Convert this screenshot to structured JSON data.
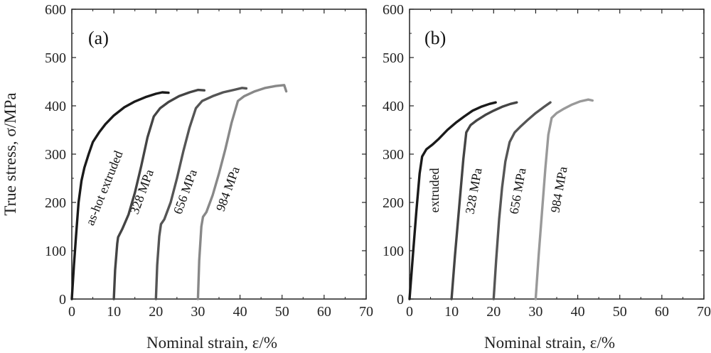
{
  "ylabel": "True stress, σ/MPa",
  "chart_data": [
    {
      "type": "line",
      "panel_label": "(a)",
      "xlabel": "Nominal strain, ε/%",
      "ylabel": "True stress, σ/MPa",
      "xlim": [
        0,
        70
      ],
      "ylim": [
        0,
        600
      ],
      "x_ticks": [
        "0",
        "10",
        "20",
        "30",
        "40",
        "50",
        "60",
        "70"
      ],
      "y_ticks": [
        "0",
        "100",
        "200",
        "300",
        "400",
        "500",
        "600"
      ],
      "grid": false,
      "series": [
        {
          "name": "as-hot extruded",
          "color": "#1a1a1a",
          "points": [
            [
              0,
              0
            ],
            [
              0.5,
              70
            ],
            [
              1,
              130
            ],
            [
              1.6,
              200
            ],
            [
              2.3,
              245
            ],
            [
              3,
              272
            ],
            [
              4,
              300
            ],
            [
              5,
              325
            ],
            [
              6.5,
              345
            ],
            [
              8,
              362
            ],
            [
              10,
              380
            ],
            [
              12.5,
              397
            ],
            [
              15,
              409
            ],
            [
              17.5,
              418
            ],
            [
              20,
              425
            ],
            [
              21.5,
              428
            ],
            [
              23,
              427
            ]
          ]
        },
        {
          "name": "328 MPa",
          "color": "#444444",
          "points": [
            [
              10,
              0
            ],
            [
              10.3,
              60
            ],
            [
              10.8,
              115
            ],
            [
              11,
              128
            ],
            [
              12,
              145
            ],
            [
              13.5,
              175
            ],
            [
              15,
              220
            ],
            [
              16.5,
              275
            ],
            [
              18,
              335
            ],
            [
              19.5,
              378
            ],
            [
              21,
              395
            ],
            [
              23,
              408
            ],
            [
              25.5,
              420
            ],
            [
              28,
              428
            ],
            [
              30,
              433
            ],
            [
              31.5,
              432
            ]
          ]
        },
        {
          "name": "656 MPa",
          "color": "#555555",
          "points": [
            [
              20,
              0
            ],
            [
              20.3,
              70
            ],
            [
              20.8,
              130
            ],
            [
              21.2,
              155
            ],
            [
              22,
              165
            ],
            [
              23.5,
              200
            ],
            [
              25,
              250
            ],
            [
              26.5,
              305
            ],
            [
              28,
              355
            ],
            [
              29.5,
              395
            ],
            [
              31,
              410
            ],
            [
              33.5,
              420
            ],
            [
              36,
              428
            ],
            [
              38.5,
              433
            ],
            [
              40.5,
              437
            ],
            [
              41.5,
              436
            ]
          ]
        },
        {
          "name": "984 MPa",
          "color": "#888888",
          "points": [
            [
              30,
              0
            ],
            [
              30.3,
              80
            ],
            [
              30.8,
              150
            ],
            [
              31.2,
              170
            ],
            [
              32,
              180
            ],
            [
              33.5,
              215
            ],
            [
              35,
              260
            ],
            [
              36.5,
              310
            ],
            [
              38,
              365
            ],
            [
              39.5,
              410
            ],
            [
              41,
              420
            ],
            [
              43.5,
              430
            ],
            [
              46,
              437
            ],
            [
              48.5,
              441
            ],
            [
              50.5,
              443
            ],
            [
              51,
              430
            ]
          ]
        }
      ],
      "annotations": [
        "as-hot extruded",
        "328 MPa",
        "656 MPa",
        "984 MPa"
      ]
    },
    {
      "type": "line",
      "panel_label": "(b)",
      "xlabel": "Nominal strain, ε/%",
      "ylabel": "",
      "xlim": [
        0,
        70
      ],
      "ylim": [
        0,
        600
      ],
      "x_ticks": [
        "0",
        "10",
        "20",
        "30",
        "40",
        "50",
        "60",
        "70"
      ],
      "y_ticks": [
        "0",
        "100",
        "200",
        "300",
        "400",
        "500",
        "600"
      ],
      "grid": false,
      "series": [
        {
          "name": "extruded",
          "color": "#1a1a1a",
          "points": [
            [
              0,
              0
            ],
            [
              0.8,
              90
            ],
            [
              1.6,
              180
            ],
            [
              2.4,
              260
            ],
            [
              3,
              295
            ],
            [
              4,
              310
            ],
            [
              5.5,
              320
            ],
            [
              7,
              332
            ],
            [
              9,
              350
            ],
            [
              11,
              365
            ],
            [
              13,
              378
            ],
            [
              15,
              390
            ],
            [
              17,
              398
            ],
            [
              19,
              404
            ],
            [
              20.5,
              407
            ]
          ]
        },
        {
          "name": "328 MPa",
          "color": "#444444",
          "points": [
            [
              10,
              0
            ],
            [
              10.8,
              90
            ],
            [
              11.8,
              190
            ],
            [
              12.8,
              290
            ],
            [
              13.5,
              345
            ],
            [
              14.5,
              360
            ],
            [
              16,
              370
            ],
            [
              18,
              381
            ],
            [
              20,
              390
            ],
            [
              22,
              398
            ],
            [
              24,
              404
            ],
            [
              25.5,
              407
            ]
          ]
        },
        {
          "name": "656 MPa",
          "color": "#555555",
          "points": [
            [
              20,
              0
            ],
            [
              20.6,
              80
            ],
            [
              21.3,
              165
            ],
            [
              22,
              230
            ],
            [
              22.8,
              285
            ],
            [
              23.8,
              325
            ],
            [
              25,
              345
            ],
            [
              26.5,
              358
            ],
            [
              28,
              370
            ],
            [
              30,
              385
            ],
            [
              32,
              398
            ],
            [
              33.5,
              407
            ]
          ]
        },
        {
          "name": "984 MPa",
          "color": "#999999",
          "points": [
            [
              30,
              0
            ],
            [
              30.7,
              90
            ],
            [
              31.5,
              180
            ],
            [
              32.3,
              270
            ],
            [
              33,
              340
            ],
            [
              33.8,
              375
            ],
            [
              35,
              385
            ],
            [
              36.5,
              393
            ],
            [
              38.5,
              402
            ],
            [
              40.5,
              409
            ],
            [
              42.5,
              413
            ],
            [
              43.5,
              411
            ]
          ]
        }
      ],
      "annotations": [
        "extruded",
        "328 MPa",
        "656 MPa",
        "984 MPa"
      ]
    }
  ]
}
